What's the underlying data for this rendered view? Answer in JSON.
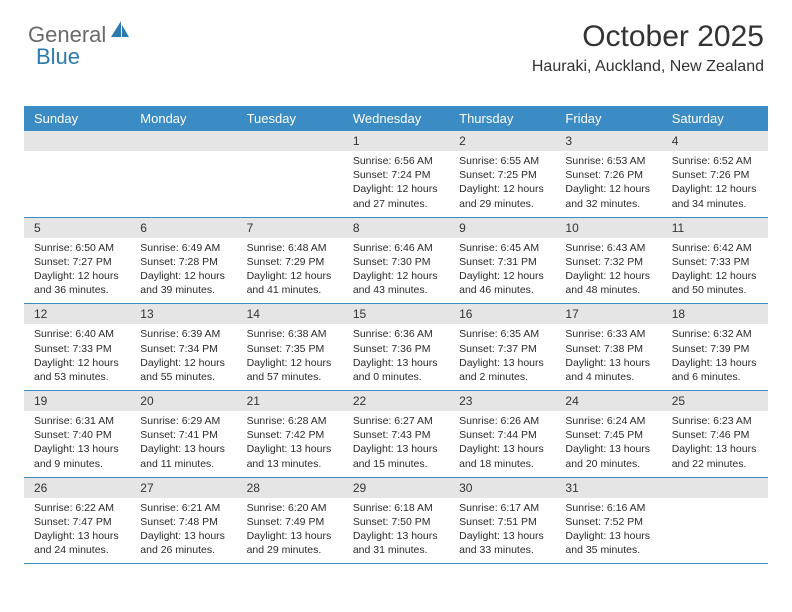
{
  "logo": {
    "text1": "General",
    "text2": "Blue",
    "icon_fill": "#2a7ab0"
  },
  "title": "October 2025",
  "location": "Hauraki, Auckland, New Zealand",
  "colors": {
    "header_bg": "#3b8bc4",
    "header_text": "#ffffff",
    "daynum_bg": "#e5e5e5",
    "row_border": "#3b8bc4",
    "body_text": "#2b2b2b"
  },
  "day_headers": [
    "Sunday",
    "Monday",
    "Tuesday",
    "Wednesday",
    "Thursday",
    "Friday",
    "Saturday"
  ],
  "weeks": [
    [
      {
        "n": "",
        "l1": "",
        "l2": "",
        "l3": "",
        "l4": ""
      },
      {
        "n": "",
        "l1": "",
        "l2": "",
        "l3": "",
        "l4": ""
      },
      {
        "n": "",
        "l1": "",
        "l2": "",
        "l3": "",
        "l4": ""
      },
      {
        "n": "1",
        "l1": "Sunrise: 6:56 AM",
        "l2": "Sunset: 7:24 PM",
        "l3": "Daylight: 12 hours",
        "l4": "and 27 minutes."
      },
      {
        "n": "2",
        "l1": "Sunrise: 6:55 AM",
        "l2": "Sunset: 7:25 PM",
        "l3": "Daylight: 12 hours",
        "l4": "and 29 minutes."
      },
      {
        "n": "3",
        "l1": "Sunrise: 6:53 AM",
        "l2": "Sunset: 7:26 PM",
        "l3": "Daylight: 12 hours",
        "l4": "and 32 minutes."
      },
      {
        "n": "4",
        "l1": "Sunrise: 6:52 AM",
        "l2": "Sunset: 7:26 PM",
        "l3": "Daylight: 12 hours",
        "l4": "and 34 minutes."
      }
    ],
    [
      {
        "n": "5",
        "l1": "Sunrise: 6:50 AM",
        "l2": "Sunset: 7:27 PM",
        "l3": "Daylight: 12 hours",
        "l4": "and 36 minutes."
      },
      {
        "n": "6",
        "l1": "Sunrise: 6:49 AM",
        "l2": "Sunset: 7:28 PM",
        "l3": "Daylight: 12 hours",
        "l4": "and 39 minutes."
      },
      {
        "n": "7",
        "l1": "Sunrise: 6:48 AM",
        "l2": "Sunset: 7:29 PM",
        "l3": "Daylight: 12 hours",
        "l4": "and 41 minutes."
      },
      {
        "n": "8",
        "l1": "Sunrise: 6:46 AM",
        "l2": "Sunset: 7:30 PM",
        "l3": "Daylight: 12 hours",
        "l4": "and 43 minutes."
      },
      {
        "n": "9",
        "l1": "Sunrise: 6:45 AM",
        "l2": "Sunset: 7:31 PM",
        "l3": "Daylight: 12 hours",
        "l4": "and 46 minutes."
      },
      {
        "n": "10",
        "l1": "Sunrise: 6:43 AM",
        "l2": "Sunset: 7:32 PM",
        "l3": "Daylight: 12 hours",
        "l4": "and 48 minutes."
      },
      {
        "n": "11",
        "l1": "Sunrise: 6:42 AM",
        "l2": "Sunset: 7:33 PM",
        "l3": "Daylight: 12 hours",
        "l4": "and 50 minutes."
      }
    ],
    [
      {
        "n": "12",
        "l1": "Sunrise: 6:40 AM",
        "l2": "Sunset: 7:33 PM",
        "l3": "Daylight: 12 hours",
        "l4": "and 53 minutes."
      },
      {
        "n": "13",
        "l1": "Sunrise: 6:39 AM",
        "l2": "Sunset: 7:34 PM",
        "l3": "Daylight: 12 hours",
        "l4": "and 55 minutes."
      },
      {
        "n": "14",
        "l1": "Sunrise: 6:38 AM",
        "l2": "Sunset: 7:35 PM",
        "l3": "Daylight: 12 hours",
        "l4": "and 57 minutes."
      },
      {
        "n": "15",
        "l1": "Sunrise: 6:36 AM",
        "l2": "Sunset: 7:36 PM",
        "l3": "Daylight: 13 hours",
        "l4": "and 0 minutes."
      },
      {
        "n": "16",
        "l1": "Sunrise: 6:35 AM",
        "l2": "Sunset: 7:37 PM",
        "l3": "Daylight: 13 hours",
        "l4": "and 2 minutes."
      },
      {
        "n": "17",
        "l1": "Sunrise: 6:33 AM",
        "l2": "Sunset: 7:38 PM",
        "l3": "Daylight: 13 hours",
        "l4": "and 4 minutes."
      },
      {
        "n": "18",
        "l1": "Sunrise: 6:32 AM",
        "l2": "Sunset: 7:39 PM",
        "l3": "Daylight: 13 hours",
        "l4": "and 6 minutes."
      }
    ],
    [
      {
        "n": "19",
        "l1": "Sunrise: 6:31 AM",
        "l2": "Sunset: 7:40 PM",
        "l3": "Daylight: 13 hours",
        "l4": "and 9 minutes."
      },
      {
        "n": "20",
        "l1": "Sunrise: 6:29 AM",
        "l2": "Sunset: 7:41 PM",
        "l3": "Daylight: 13 hours",
        "l4": "and 11 minutes."
      },
      {
        "n": "21",
        "l1": "Sunrise: 6:28 AM",
        "l2": "Sunset: 7:42 PM",
        "l3": "Daylight: 13 hours",
        "l4": "and 13 minutes."
      },
      {
        "n": "22",
        "l1": "Sunrise: 6:27 AM",
        "l2": "Sunset: 7:43 PM",
        "l3": "Daylight: 13 hours",
        "l4": "and 15 minutes."
      },
      {
        "n": "23",
        "l1": "Sunrise: 6:26 AM",
        "l2": "Sunset: 7:44 PM",
        "l3": "Daylight: 13 hours",
        "l4": "and 18 minutes."
      },
      {
        "n": "24",
        "l1": "Sunrise: 6:24 AM",
        "l2": "Sunset: 7:45 PM",
        "l3": "Daylight: 13 hours",
        "l4": "and 20 minutes."
      },
      {
        "n": "25",
        "l1": "Sunrise: 6:23 AM",
        "l2": "Sunset: 7:46 PM",
        "l3": "Daylight: 13 hours",
        "l4": "and 22 minutes."
      }
    ],
    [
      {
        "n": "26",
        "l1": "Sunrise: 6:22 AM",
        "l2": "Sunset: 7:47 PM",
        "l3": "Daylight: 13 hours",
        "l4": "and 24 minutes."
      },
      {
        "n": "27",
        "l1": "Sunrise: 6:21 AM",
        "l2": "Sunset: 7:48 PM",
        "l3": "Daylight: 13 hours",
        "l4": "and 26 minutes."
      },
      {
        "n": "28",
        "l1": "Sunrise: 6:20 AM",
        "l2": "Sunset: 7:49 PM",
        "l3": "Daylight: 13 hours",
        "l4": "and 29 minutes."
      },
      {
        "n": "29",
        "l1": "Sunrise: 6:18 AM",
        "l2": "Sunset: 7:50 PM",
        "l3": "Daylight: 13 hours",
        "l4": "and 31 minutes."
      },
      {
        "n": "30",
        "l1": "Sunrise: 6:17 AM",
        "l2": "Sunset: 7:51 PM",
        "l3": "Daylight: 13 hours",
        "l4": "and 33 minutes."
      },
      {
        "n": "31",
        "l1": "Sunrise: 6:16 AM",
        "l2": "Sunset: 7:52 PM",
        "l3": "Daylight: 13 hours",
        "l4": "and 35 minutes."
      },
      {
        "n": "",
        "l1": "",
        "l2": "",
        "l3": "",
        "l4": ""
      }
    ]
  ]
}
